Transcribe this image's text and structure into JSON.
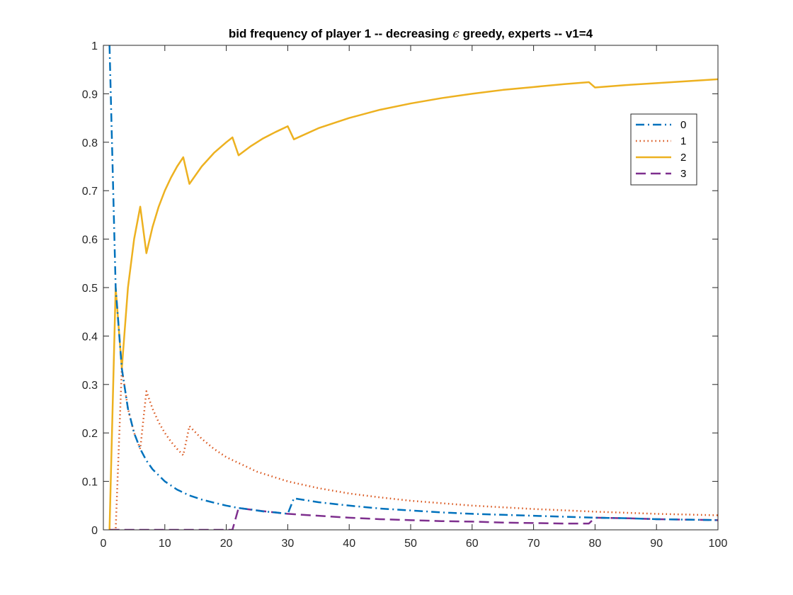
{
  "chart_data": {
    "type": "line",
    "title_prefix": "bid frequency of player 1 -- decreasing ",
    "title_symbol": "ϵ",
    "title_suffix": " greedy, experts -- v1=4",
    "xlabel": "",
    "ylabel": "",
    "xlim": [
      0,
      100
    ],
    "ylim": [
      0,
      1
    ],
    "xticks": [
      "0",
      "10",
      "20",
      "30",
      "40",
      "50",
      "60",
      "70",
      "80",
      "90",
      "100"
    ],
    "yticks": [
      "0",
      "0.1",
      "0.2",
      "0.3",
      "0.4",
      "0.5",
      "0.6",
      "0.7",
      "0.8",
      "0.9",
      "1"
    ],
    "grid": false,
    "legend_position": "top-right",
    "series": [
      {
        "name": "0",
        "color": "#0072BD",
        "style": "dash-dot",
        "x": [
          1,
          2,
          3,
          4,
          5,
          6,
          7,
          8,
          10,
          12,
          14,
          16,
          18,
          20,
          22,
          24,
          26,
          28,
          30,
          31,
          35,
          40,
          45,
          50,
          55,
          60,
          65,
          70,
          75,
          80,
          85,
          90,
          95,
          100
        ],
        "y": [
          1.0,
          0.5,
          0.333,
          0.25,
          0.2,
          0.167,
          0.143,
          0.125,
          0.1,
          0.083,
          0.071,
          0.0625,
          0.056,
          0.05,
          0.045,
          0.042,
          0.038,
          0.036,
          0.033,
          0.065,
          0.057,
          0.05,
          0.044,
          0.04,
          0.036,
          0.033,
          0.031,
          0.029,
          0.027,
          0.025,
          0.024,
          0.022,
          0.021,
          0.02
        ]
      },
      {
        "name": "1",
        "color": "#D95319",
        "style": "dotted",
        "x": [
          1,
          2,
          3,
          4,
          5,
          6,
          7,
          8,
          9,
          10,
          11,
          12,
          13,
          14,
          16,
          18,
          20,
          25,
          30,
          35,
          40,
          45,
          50,
          60,
          70,
          80,
          90,
          100
        ],
        "y": [
          0,
          0,
          0.333,
          0.25,
          0.2,
          0.167,
          0.286,
          0.25,
          0.222,
          0.2,
          0.182,
          0.167,
          0.154,
          0.214,
          0.188,
          0.167,
          0.15,
          0.12,
          0.1,
          0.086,
          0.075,
          0.067,
          0.06,
          0.05,
          0.043,
          0.0375,
          0.033,
          0.03
        ]
      },
      {
        "name": "2",
        "color": "#EDB120",
        "style": "solid",
        "x": [
          1,
          2,
          3,
          4,
          5,
          6,
          7,
          8,
          9,
          10,
          11,
          12,
          13,
          14,
          16,
          18,
          20,
          21,
          22,
          24,
          26,
          28,
          30,
          31,
          35,
          40,
          45,
          50,
          55,
          60,
          65,
          70,
          75,
          79,
          80,
          85,
          90,
          95,
          100
        ],
        "y": [
          0,
          0.5,
          0.333,
          0.5,
          0.6,
          0.667,
          0.571,
          0.625,
          0.667,
          0.7,
          0.727,
          0.75,
          0.769,
          0.714,
          0.75,
          0.778,
          0.8,
          0.81,
          0.773,
          0.792,
          0.808,
          0.821,
          0.833,
          0.806,
          0.829,
          0.85,
          0.867,
          0.88,
          0.891,
          0.9,
          0.908,
          0.914,
          0.92,
          0.924,
          0.913,
          0.918,
          0.922,
          0.926,
          0.93
        ]
      },
      {
        "name": "3",
        "color": "#7E2F8E",
        "style": "dashed",
        "x": [
          1,
          5,
          10,
          15,
          20,
          21,
          22,
          25,
          30,
          35,
          40,
          45,
          50,
          55,
          60,
          65,
          70,
          75,
          79,
          80,
          85,
          90,
          95,
          100
        ],
        "y": [
          0,
          0,
          0,
          0,
          0,
          0,
          0.045,
          0.04,
          0.033,
          0.029,
          0.025,
          0.022,
          0.02,
          0.018,
          0.017,
          0.015,
          0.014,
          0.013,
          0.013,
          0.025,
          0.024,
          0.022,
          0.021,
          0.02
        ]
      }
    ]
  }
}
